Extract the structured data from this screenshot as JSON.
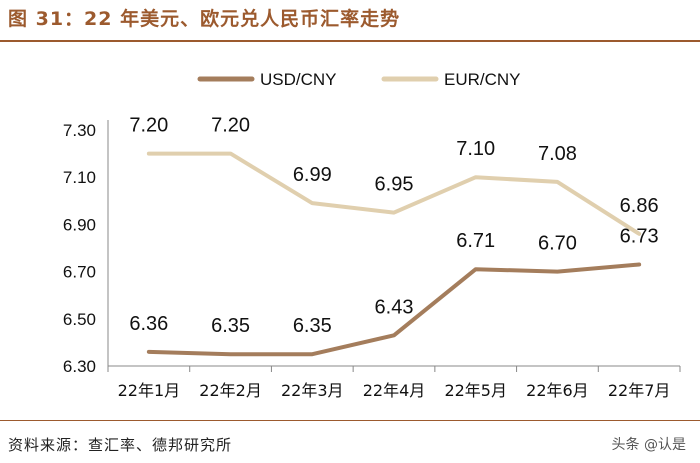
{
  "header": {
    "title": "图 31：22 年美元、欧元兑人民币汇率走势"
  },
  "footer": {
    "source": "资料来源：查汇率、德邦研究所",
    "watermark": "头条 @认是"
  },
  "colors": {
    "usd": "#a47d5c",
    "eur": "#e0cfae",
    "accent": "#9c5a2e"
  },
  "chart_data": {
    "type": "line",
    "categories": [
      "22年1月",
      "22年2月",
      "22年3月",
      "22年4月",
      "22年5月",
      "22年6月",
      "22年7月"
    ],
    "series": [
      {
        "name": "USD/CNY",
        "values": [
          6.36,
          6.35,
          6.35,
          6.43,
          6.71,
          6.7,
          6.73
        ],
        "labels": [
          "6.36",
          "6.35",
          "6.35",
          "6.43",
          "6.71",
          "6.70",
          "6.73"
        ]
      },
      {
        "name": "EUR/CNY",
        "values": [
          7.2,
          7.2,
          6.99,
          6.95,
          7.1,
          7.08,
          6.86
        ],
        "labels": [
          "7.20",
          "7.20",
          "6.99",
          "6.95",
          "7.10",
          "7.08",
          "6.86"
        ]
      }
    ],
    "yticks": [
      "6.30",
      "6.50",
      "6.70",
      "6.90",
      "7.10",
      "7.30"
    ],
    "ylim": [
      6.3,
      7.3
    ],
    "grid": false,
    "legend": "top"
  }
}
